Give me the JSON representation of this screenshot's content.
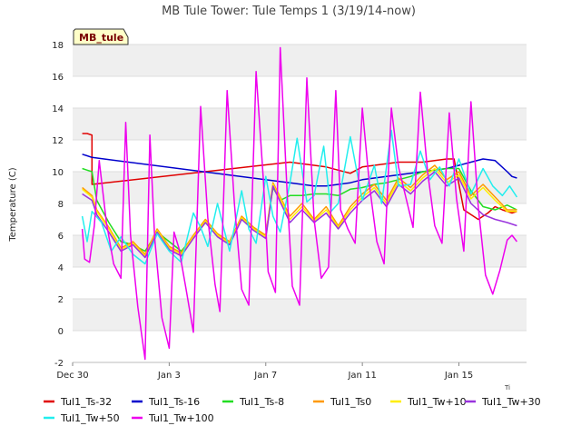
{
  "chart_data": {
    "type": "line",
    "title": "MB Tule Tower: Tule Temps 1 (3/19/14-now)",
    "site_badge": "MB_tule",
    "xlabel": "",
    "ylabel": "Temperature (C)",
    "x_unit": "days since Dec 30",
    "xlim": [
      0,
      18.8
    ],
    "ylim": [
      -2,
      18
    ],
    "y_ticks": [
      -2,
      0,
      2,
      4,
      6,
      8,
      10,
      12,
      14,
      16,
      18
    ],
    "x_ticks": [
      {
        "x": 0,
        "label": "Dec 30"
      },
      {
        "x": 4,
        "label": "Jan 3"
      },
      {
        "x": 8,
        "label": "Jan 7"
      },
      {
        "x": 12,
        "label": "Jan 11"
      },
      {
        "x": 16,
        "label": "Jan 15"
      }
    ],
    "grid": "horizontal bands",
    "legend_position": "bottom",
    "series": [
      {
        "name": "Tul1_Ts-32",
        "color": "#e00000",
        "x": [
          0.4,
          0.6,
          0.8,
          0.8,
          9.0,
          9.5,
          10.0,
          10.5,
          11.0,
          11.5,
          12.0,
          12.5,
          13.0,
          13.5,
          14.0,
          14.5,
          15.0,
          15.5,
          15.8,
          16.2,
          16.5,
          16.8,
          17.2,
          17.5,
          17.8,
          18.0,
          18.2,
          18.4
        ],
        "y": [
          12.4,
          12.4,
          12.3,
          9.2,
          10.6,
          10.5,
          10.4,
          10.3,
          10.1,
          9.9,
          10.3,
          10.4,
          10.5,
          10.6,
          10.6,
          10.6,
          10.7,
          10.8,
          10.8,
          7.6,
          7.3,
          7.0,
          7.4,
          7.8,
          7.6,
          7.5,
          7.4,
          7.5
        ]
      },
      {
        "name": "Tul1_Ts-16",
        "color": "#0000cc",
        "x": [
          0.4,
          0.6,
          0.8,
          9.0,
          9.5,
          10.0,
          10.5,
          11.0,
          11.5,
          12.0,
          12.5,
          13.0,
          13.5,
          14.0,
          14.5,
          15.0,
          15.5,
          16.0,
          16.5,
          17.0,
          17.5,
          18.0,
          18.2,
          18.4
        ],
        "y": [
          11.1,
          11.0,
          10.9,
          9.3,
          9.2,
          9.1,
          9.1,
          9.2,
          9.3,
          9.5,
          9.6,
          9.7,
          9.8,
          9.9,
          10.0,
          10.1,
          10.2,
          10.4,
          10.6,
          10.8,
          10.7,
          10.0,
          9.7,
          9.6
        ]
      },
      {
        "name": "Tul1_Ts-8",
        "color": "#22dd22",
        "x": [
          0.4,
          0.6,
          0.8,
          1.0,
          1.5,
          2.0,
          2.5,
          3.0,
          3.5,
          4.0,
          4.5,
          5.0,
          5.5,
          6.0,
          6.5,
          7.0,
          7.5,
          8.0,
          8.3,
          8.6,
          9.0,
          9.5,
          10.0,
          10.5,
          11.0,
          11.5,
          12.0,
          12.5,
          13.0,
          13.5,
          14.0,
          14.5,
          15.0,
          15.5,
          16.0,
          16.5,
          17.0,
          17.5,
          18.0,
          18.4
        ],
        "y": [
          10.2,
          10.1,
          10.0,
          8.2,
          6.8,
          5.6,
          5.4,
          5.0,
          6.2,
          5.6,
          5.0,
          5.9,
          6.8,
          6.0,
          5.5,
          7.0,
          6.4,
          6.0,
          9.0,
          8.2,
          8.5,
          8.5,
          8.6,
          8.6,
          8.5,
          8.9,
          9.0,
          9.2,
          9.3,
          9.5,
          9.7,
          10.0,
          10.1,
          10.2,
          10.2,
          8.8,
          7.8,
          7.6,
          7.9,
          7.6
        ]
      },
      {
        "name": "Tul1_Ts0",
        "color": "#ff9900",
        "x": [
          0.4,
          0.8,
          1.0,
          1.5,
          2.0,
          2.5,
          3.0,
          3.5,
          4.0,
          4.5,
          5.0,
          5.5,
          6.0,
          6.5,
          7.0,
          7.5,
          8.0,
          8.3,
          8.6,
          9.0,
          9.5,
          10.0,
          10.5,
          11.0,
          11.5,
          12.0,
          12.5,
          13.0,
          13.5,
          14.0,
          14.5,
          15.0,
          15.5,
          16.0,
          16.5,
          17.0,
          17.5,
          18.0,
          18.4
        ],
        "y": [
          9.0,
          8.5,
          7.6,
          6.5,
          5.2,
          5.6,
          4.8,
          6.4,
          5.3,
          4.9,
          6.0,
          7.0,
          6.1,
          5.6,
          7.2,
          6.5,
          6.0,
          9.3,
          8.4,
          7.2,
          8.0,
          7.0,
          7.8,
          6.6,
          7.8,
          8.6,
          9.2,
          8.2,
          9.6,
          9.0,
          9.8,
          10.4,
          9.5,
          10.0,
          8.5,
          9.2,
          8.4,
          7.6,
          7.6
        ]
      },
      {
        "name": "Tul1_Tw+10",
        "color": "#ffee00",
        "x": [
          0.4,
          0.8,
          1.0,
          1.5,
          2.0,
          2.5,
          3.0,
          3.5,
          4.0,
          4.5,
          5.0,
          5.5,
          6.0,
          6.5,
          7.0,
          7.5,
          8.0,
          8.3,
          8.6,
          9.0,
          9.5,
          10.0,
          10.5,
          11.0,
          11.5,
          12.0,
          12.5,
          13.0,
          13.5,
          14.0,
          14.5,
          15.0,
          15.5,
          16.0,
          16.5,
          17.0,
          17.5,
          18.0,
          18.4
        ],
        "y": [
          8.9,
          8.4,
          7.5,
          6.4,
          5.1,
          5.5,
          4.7,
          6.3,
          5.2,
          4.8,
          5.9,
          6.9,
          6.0,
          5.5,
          7.1,
          6.4,
          5.9,
          9.2,
          8.3,
          7.0,
          7.8,
          6.9,
          7.6,
          6.5,
          7.6,
          8.4,
          9.0,
          8.0,
          9.4,
          8.8,
          9.6,
          10.2,
          9.3,
          9.8,
          8.3,
          9.0,
          8.2,
          7.5,
          7.5
        ]
      },
      {
        "name": "Tul1_Tw+30",
        "color": "#9933dd",
        "x": [
          0.4,
          0.8,
          1.0,
          1.5,
          2.0,
          2.5,
          3.0,
          3.5,
          4.0,
          4.5,
          5.0,
          5.5,
          6.0,
          6.5,
          7.0,
          7.5,
          8.0,
          8.3,
          8.6,
          9.0,
          9.5,
          10.0,
          10.5,
          11.0,
          11.5,
          12.0,
          12.5,
          13.0,
          13.5,
          14.0,
          14.5,
          15.0,
          15.5,
          16.0,
          16.5,
          17.0,
          17.5,
          18.0,
          18.4
        ],
        "y": [
          8.6,
          8.2,
          7.3,
          6.2,
          5.0,
          5.4,
          4.6,
          6.2,
          5.1,
          4.7,
          5.8,
          6.8,
          5.9,
          5.4,
          7.0,
          6.3,
          5.8,
          9.1,
          8.1,
          6.8,
          7.6,
          6.8,
          7.4,
          6.4,
          7.4,
          8.2,
          8.8,
          7.8,
          9.2,
          8.6,
          9.4,
          10.0,
          9.1,
          9.6,
          8.0,
          7.3,
          7.0,
          6.8,
          6.6
        ]
      },
      {
        "name": "Tul1_Tw+50",
        "color": "#22eeee",
        "x": [
          0.4,
          0.6,
          0.8,
          1.2,
          1.6,
          2.0,
          2.5,
          3.0,
          3.5,
          4.0,
          4.5,
          5.0,
          5.3,
          5.6,
          6.0,
          6.5,
          7.0,
          7.3,
          7.6,
          8.0,
          8.3,
          8.6,
          9.0,
          9.3,
          9.7,
          10.0,
          10.4,
          10.7,
          11.0,
          11.5,
          12.0,
          12.5,
          12.8,
          13.2,
          13.5,
          14.0,
          14.4,
          14.8,
          15.2,
          15.6,
          16.0,
          16.5,
          17.0,
          17.4,
          17.8,
          18.1,
          18.4
        ],
        "y": [
          7.2,
          5.6,
          7.5,
          6.8,
          5.0,
          5.9,
          4.8,
          4.2,
          6.1,
          5.0,
          4.3,
          7.4,
          6.5,
          5.3,
          8.0,
          5.0,
          8.8,
          6.4,
          5.5,
          9.7,
          7.2,
          6.2,
          9.3,
          12.1,
          8.1,
          8.5,
          11.6,
          7.5,
          8.0,
          12.2,
          8.2,
          10.4,
          8.0,
          12.6,
          9.1,
          9.2,
          11.3,
          9.5,
          10.3,
          9.1,
          10.8,
          8.6,
          10.2,
          9.1,
          8.5,
          9.1,
          8.4
        ]
      },
      {
        "name": "Tul1_Tw+100",
        "color": "#ee00ee",
        "x": [
          0.4,
          0.5,
          0.7,
          0.9,
          1.1,
          1.4,
          1.7,
          2.0,
          2.2,
          2.4,
          2.7,
          3.0,
          3.2,
          3.4,
          3.7,
          4.0,
          4.2,
          4.4,
          4.7,
          5.0,
          5.3,
          5.6,
          5.9,
          6.1,
          6.4,
          6.7,
          7.0,
          7.3,
          7.6,
          7.9,
          8.1,
          8.4,
          8.6,
          8.9,
          9.1,
          9.4,
          9.7,
          10.0,
          10.3,
          10.6,
          10.9,
          11.1,
          11.4,
          11.7,
          12.0,
          12.3,
          12.6,
          12.9,
          13.2,
          13.5,
          13.8,
          14.1,
          14.4,
          14.7,
          15.0,
          15.3,
          15.6,
          15.9,
          16.2,
          16.5,
          16.8,
          17.1,
          17.4,
          17.7,
          18.0,
          18.2,
          18.4
        ],
        "y": [
          6.4,
          4.5,
          4.3,
          6.6,
          10.7,
          6.8,
          4.2,
          3.3,
          13.1,
          6.0,
          1.5,
          -1.8,
          12.3,
          5.8,
          0.8,
          -1.1,
          6.2,
          5.2,
          2.6,
          -0.1,
          14.1,
          7.1,
          2.9,
          1.2,
          15.1,
          8.0,
          2.6,
          1.6,
          16.3,
          9.5,
          3.7,
          2.4,
          17.8,
          8.2,
          2.8,
          1.6,
          15.9,
          7.0,
          3.3,
          4.0,
          15.1,
          7.6,
          6.4,
          5.5,
          14.0,
          9.1,
          5.6,
          4.2,
          14.0,
          10.3,
          8.4,
          6.5,
          15.0,
          10.0,
          6.6,
          5.5,
          13.7,
          8.3,
          5.0,
          14.4,
          7.8,
          3.5,
          2.3,
          3.8,
          5.7,
          6.0,
          5.6
        ]
      }
    ]
  }
}
